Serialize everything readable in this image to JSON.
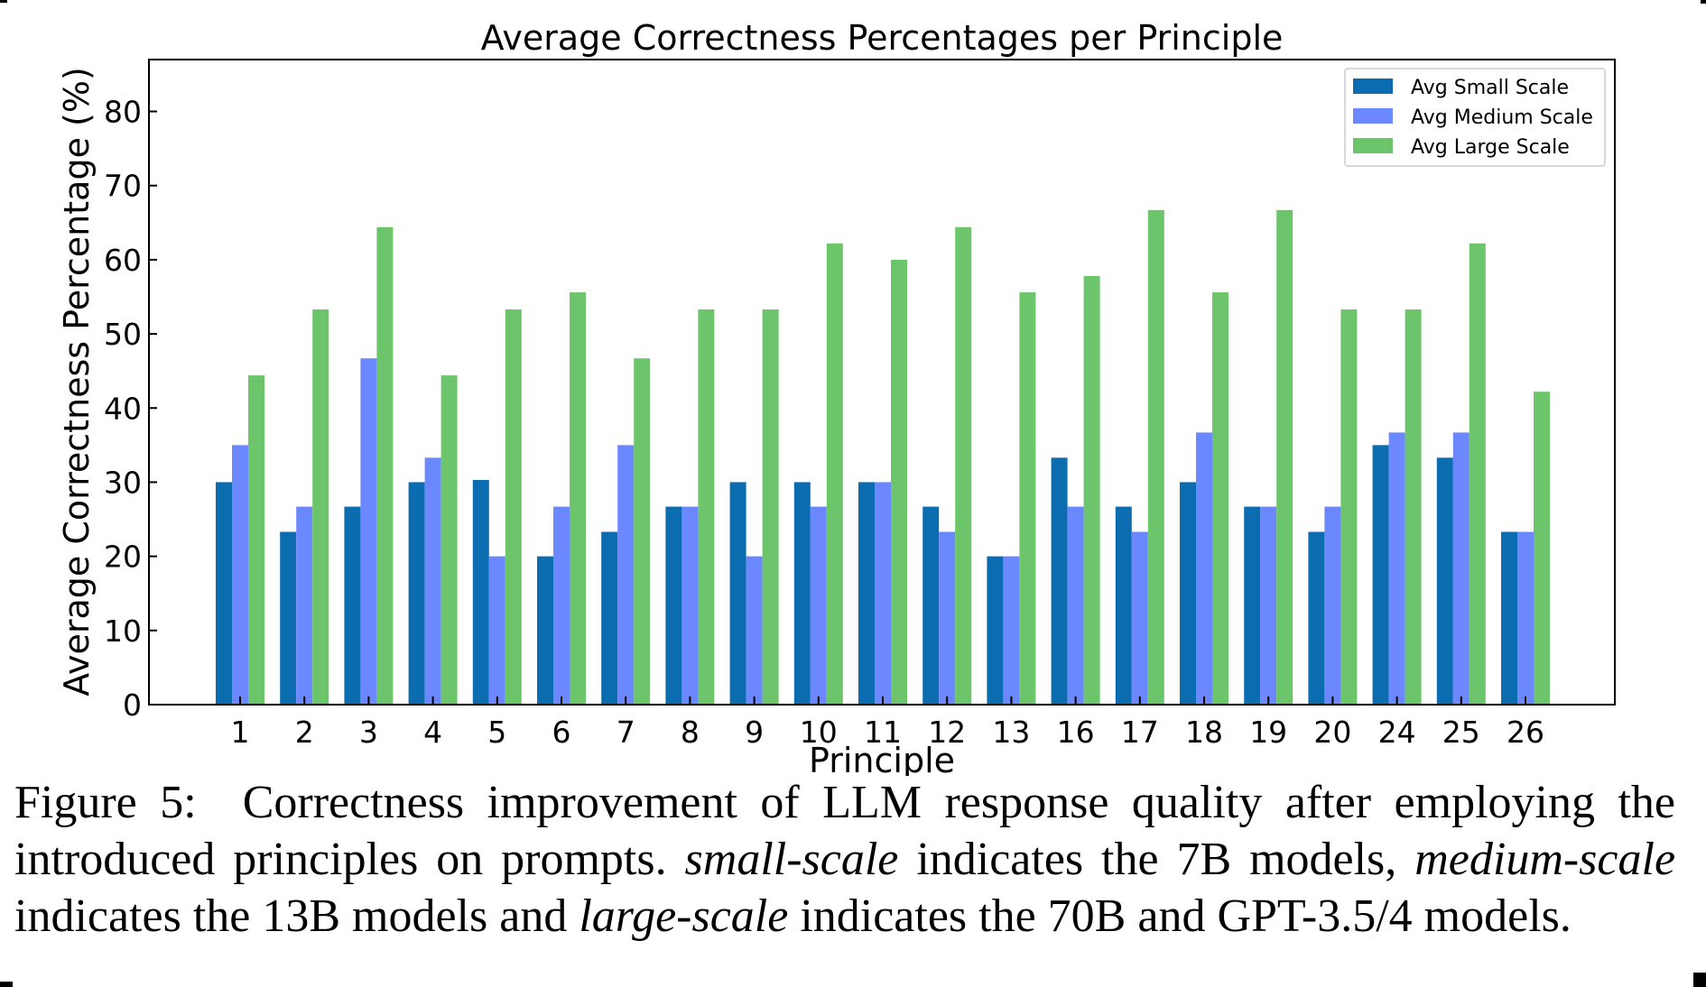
{
  "chart_data": {
    "type": "bar",
    "title": "Average Correctness Percentages per Principle",
    "xlabel": "Principle",
    "ylabel": "Average Correctness Percentage (%)",
    "ylim": [
      0,
      87
    ],
    "yticks": [
      0,
      10,
      20,
      30,
      40,
      50,
      60,
      70,
      80
    ],
    "categories": [
      "1",
      "2",
      "3",
      "4",
      "5",
      "6",
      "7",
      "8",
      "9",
      "10",
      "11",
      "12",
      "13",
      "16",
      "17",
      "18",
      "19",
      "20",
      "24",
      "25",
      "26"
    ],
    "legend_position": "top-right",
    "grid": false,
    "series": [
      {
        "name": "Avg Small Scale",
        "color": "#0b6db0",
        "values": [
          30,
          23.3,
          26.7,
          30,
          30.3,
          20,
          23.3,
          26.7,
          30,
          30,
          30,
          26.7,
          20,
          33.3,
          26.7,
          30,
          26.7,
          23.3,
          35,
          33.3,
          23.3
        ]
      },
      {
        "name": "Avg Medium Scale",
        "color": "#6b88ff",
        "values": [
          35,
          26.7,
          46.7,
          33.3,
          20,
          26.7,
          35,
          26.7,
          20,
          26.7,
          30,
          23.3,
          20,
          26.7,
          23.3,
          36.7,
          26.7,
          26.7,
          36.7,
          36.7,
          23.3
        ]
      },
      {
        "name": "Avg Large Scale",
        "color": "#6cc56a",
        "values": [
          44.4,
          53.3,
          64.4,
          44.4,
          53.3,
          55.6,
          46.7,
          53.3,
          53.3,
          62.2,
          60,
          64.4,
          55.6,
          57.8,
          66.7,
          55.6,
          66.7,
          53.3,
          53.3,
          62.2,
          42.2
        ]
      }
    ]
  },
  "caption": {
    "label": "Figure 5:",
    "text_1": "Correctness improvement of LLM response quality after employing the introduced principles on prompts.",
    "em_1": "small-scale",
    "text_2": "indicates the 7B models,",
    "em_2": "medium-scale",
    "text_3": "indicates the 13B models and",
    "em_3": "large-scale",
    "text_4": "indicates the 70B and GPT-3.5/4 models."
  }
}
